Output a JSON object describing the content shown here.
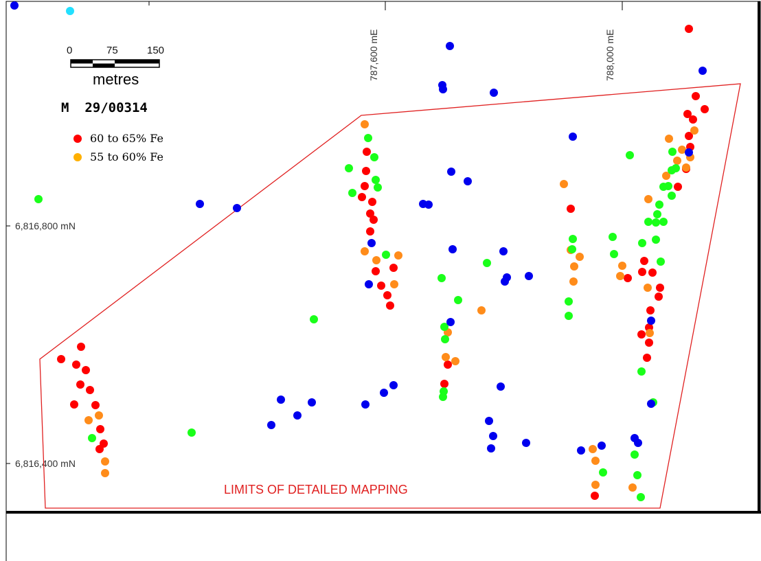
{
  "map": {
    "title": "M  29/00314",
    "scale_bar": {
      "ticks": [
        "0",
        "75",
        "150"
      ],
      "unit": "metres"
    },
    "easting_labels": [
      "787,600 mE",
      "788,000 mE"
    ],
    "northing_labels": [
      "6,816,800 mN",
      "6,816,400 mN"
    ],
    "boundary_label": "LIMITS OF DETAILED MAPPING",
    "legend": [
      {
        "label": "60 to 65% Fe",
        "color": "#ff0000"
      },
      {
        "label": "55 to 60% Fe",
        "color": "#ffa500"
      }
    ],
    "colors": {
      "red": "#ff0000",
      "orange": "#ff8c1a",
      "green": "#1aff1a",
      "blue": "#0000ee",
      "cyan": "#22e0ff",
      "boundary": "#e02020"
    },
    "samples": {
      "red": [],
      "orange": [],
      "green": [],
      "blue": []
    }
  }
}
